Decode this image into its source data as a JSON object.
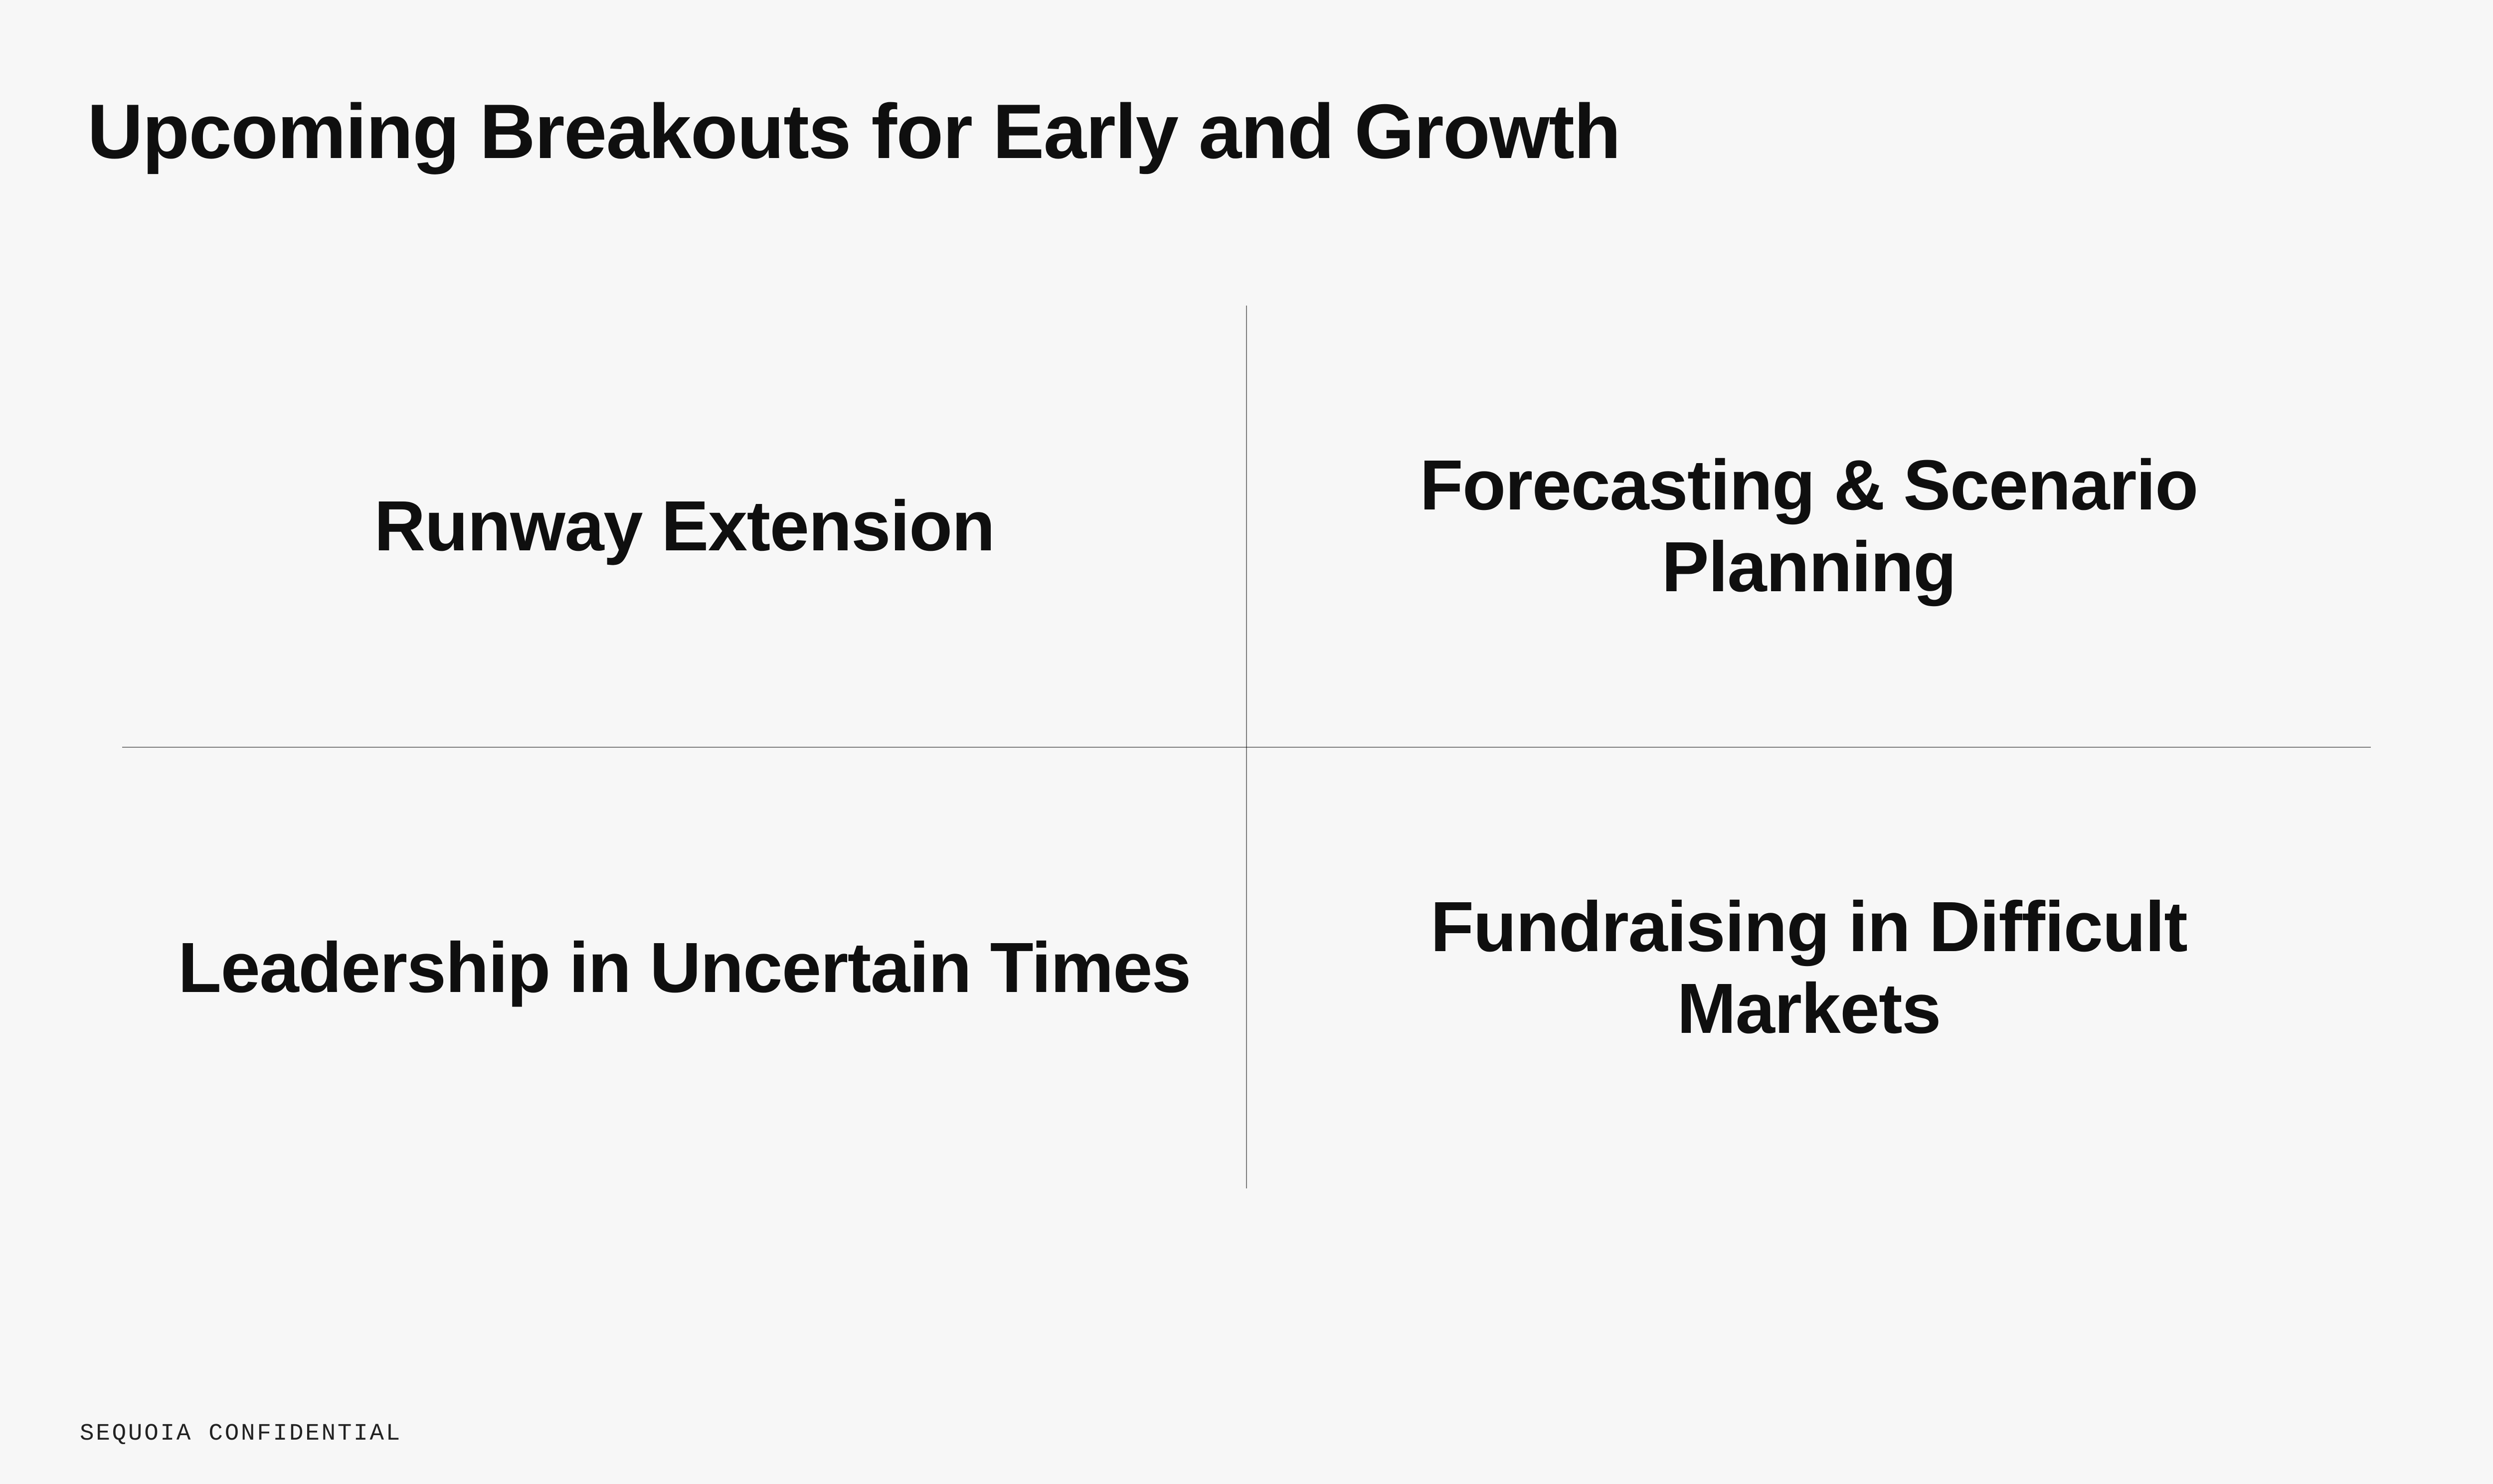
{
  "slide": {
    "title": "Upcoming Breakouts for Early and Growth",
    "background_color": "#f7f7f7",
    "text_color": "#0f0f0f",
    "divider_color": "#000000",
    "title_fontsize_vw": 3.1,
    "quadrant_fontsize_vw": 2.85,
    "quadrants": {
      "top_left": "Runway Extension",
      "top_right": "Forecasting & Scenario Planning",
      "bottom_left": "Leadership in Uncertain Times",
      "bottom_right": "Fundraising in Difficult Markets"
    },
    "footer": "SEQUOIA CONFIDENTIAL",
    "footer_fontsize_vw": 0.95,
    "footer_color": "#222222"
  }
}
